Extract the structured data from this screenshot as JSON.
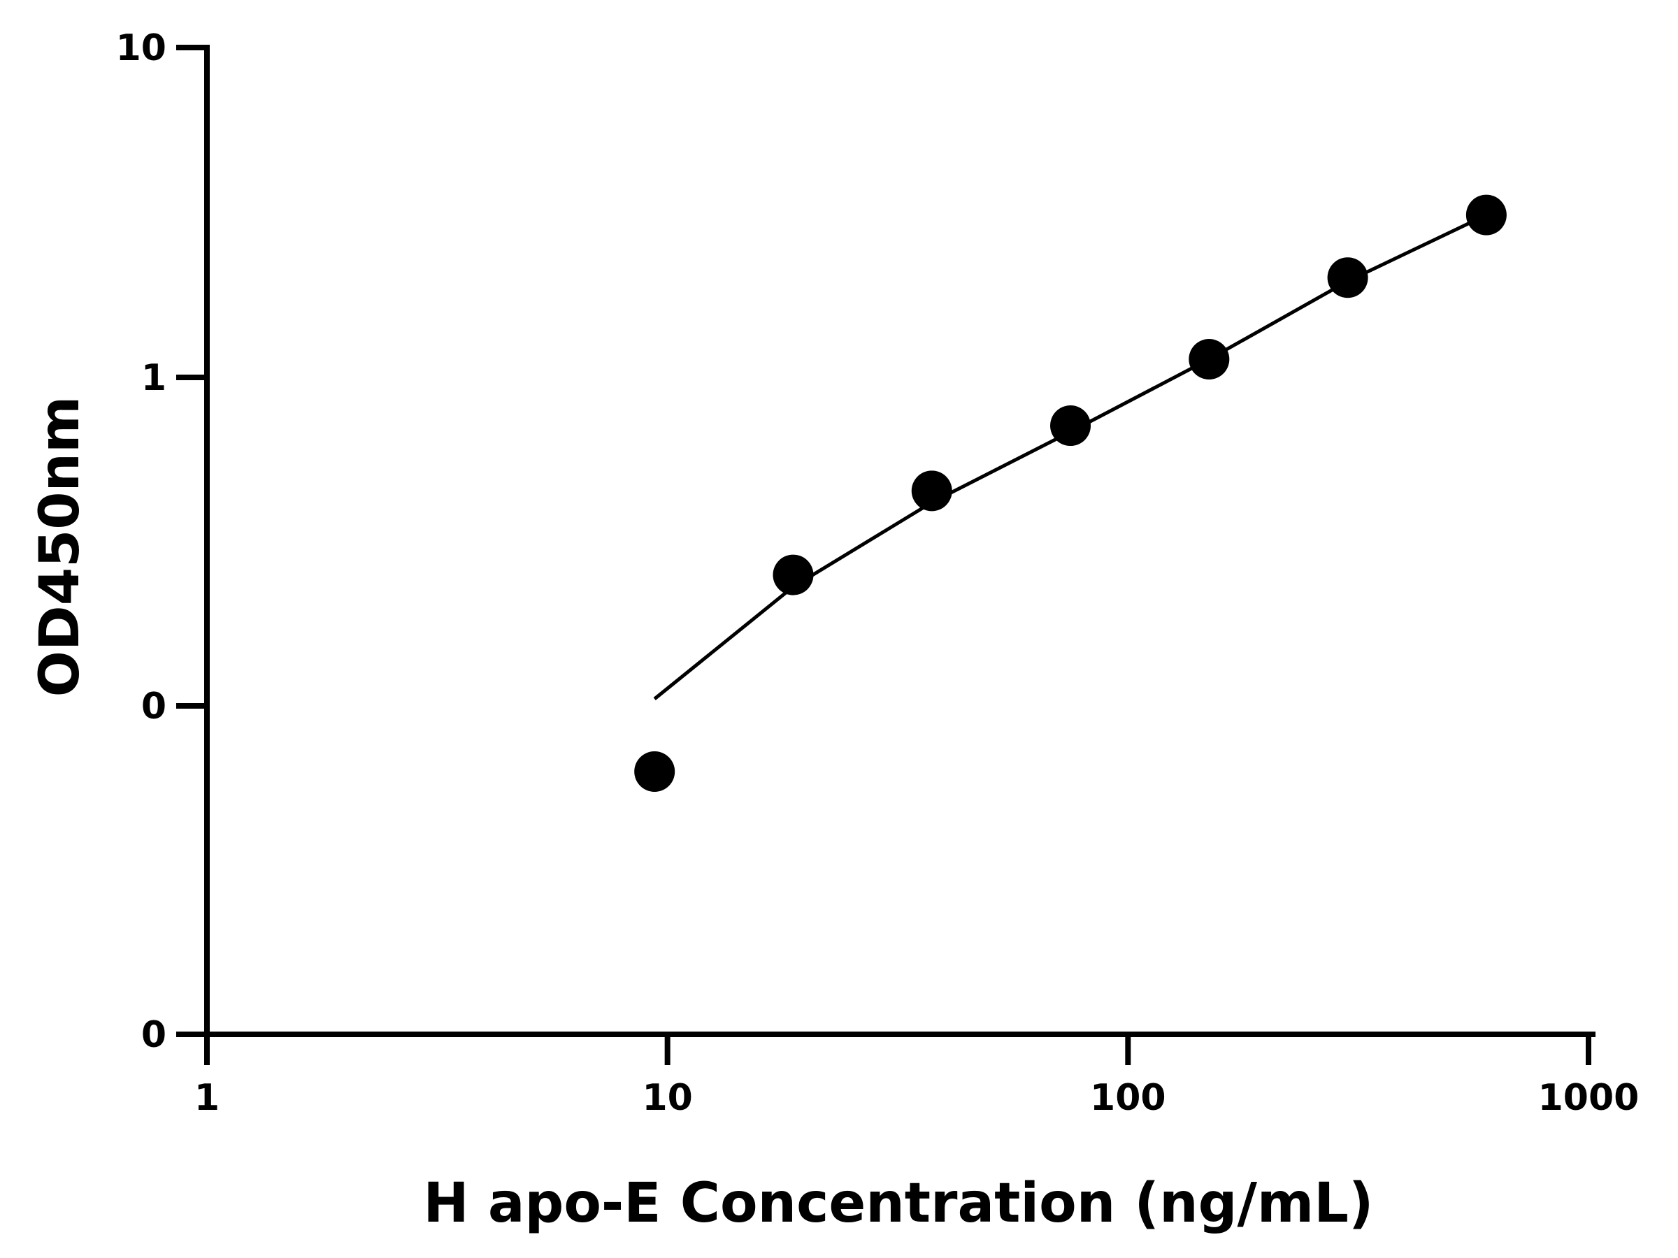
{
  "chart_data": {
    "type": "scatter",
    "xlabel": "H apo-E Concentration (ng/mL)",
    "ylabel": "OD450nm",
    "x_scale": "log",
    "xlim": [
      1,
      1000
    ],
    "x_ticks": [
      1,
      10,
      100,
      1000
    ],
    "x_tick_labels": [
      "1",
      "10",
      "100",
      "1000"
    ],
    "y_ticks": [
      0,
      0.1,
      1,
      10
    ],
    "y_tick_labels": [
      "0",
      "0",
      "1",
      "10"
    ],
    "grid": false,
    "legend": "none",
    "colors": {
      "points": "#000000",
      "line": "#000000",
      "axes": "#000000"
    },
    "points": {
      "x": [
        9.375,
        18.75,
        37.5,
        75,
        150,
        300,
        600
      ],
      "y": [
        0.08,
        0.25,
        0.45,
        0.71,
        1.13,
        2.0,
        3.1
      ]
    },
    "fit_line": {
      "x": [
        9.375,
        18.75,
        37.5,
        75,
        150,
        300,
        600
      ],
      "y": [
        0.105,
        0.23,
        0.415,
        0.68,
        1.13,
        1.95,
        3.1
      ]
    }
  }
}
